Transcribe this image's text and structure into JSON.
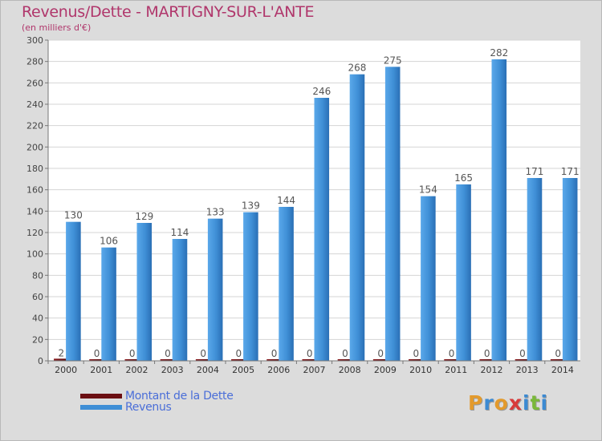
{
  "header": {
    "title": "Revenus/Dette - MARTIGNY-SUR-L'ANTE",
    "subtitle": "(en milliers d'€)"
  },
  "chart_data": {
    "type": "bar",
    "categories": [
      "2000",
      "2001",
      "2002",
      "2003",
      "2004",
      "2005",
      "2006",
      "2007",
      "2008",
      "2009",
      "2010",
      "2011",
      "2012",
      "2013",
      "2014"
    ],
    "series": [
      {
        "name": "Montant de la Dette",
        "color": "#6b0f12",
        "values": [
          2,
          0,
          0,
          0,
          0,
          0,
          0,
          0,
          0,
          0,
          0,
          0,
          0,
          0,
          0
        ]
      },
      {
        "name": "Revenus",
        "color": "#3f8fd6",
        "values": [
          130,
          106,
          129,
          114,
          133,
          139,
          144,
          246,
          268,
          275,
          154,
          165,
          282,
          171,
          171
        ]
      }
    ],
    "title": "Revenus/Dette - MARTIGNY-SUR-L'ANTE",
    "ylim": [
      0,
      300
    ],
    "yticks": [
      0,
      20,
      40,
      60,
      80,
      100,
      120,
      140,
      160,
      180,
      200,
      220,
      240,
      260,
      280,
      300
    ],
    "grid": true,
    "legend": "bottom-left"
  },
  "legend": {
    "items": [
      {
        "label": "Montant de la Dette",
        "color": "#6b0f12"
      },
      {
        "label": "Revenus",
        "color": "#3f8fd6"
      }
    ]
  },
  "logo": {
    "letters": [
      "P",
      "r",
      "o",
      "x",
      "i",
      "t",
      "i"
    ],
    "colors": [
      "#e39a2c",
      "#3c8ad2",
      "#e39a2c",
      "#d83a3a",
      "#3c8ad2",
      "#7ab83a",
      "#3c8ad2"
    ]
  }
}
